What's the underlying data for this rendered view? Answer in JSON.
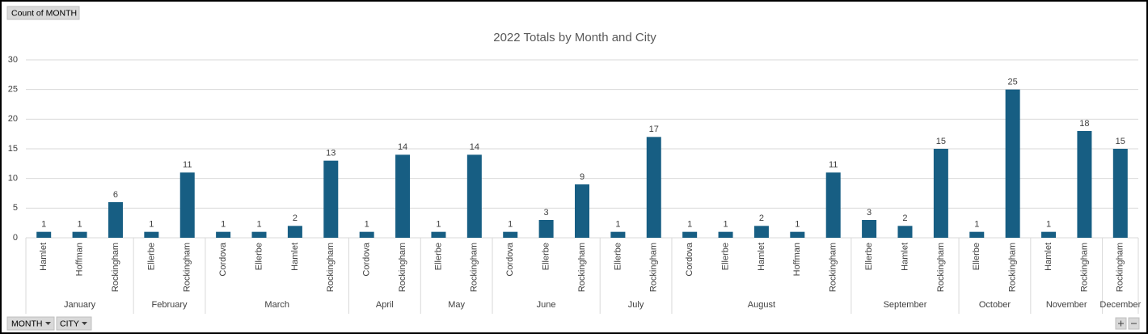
{
  "field_buttons": {
    "values": "Count of MONTH",
    "axis": [
      "MONTH",
      "CITY"
    ]
  },
  "chart_data": {
    "type": "bar",
    "title": "2022 Totals by Month and City",
    "color": "#175e83",
    "ylim": [
      0,
      30
    ],
    "yticks": [
      0,
      5,
      10,
      15,
      20,
      25,
      30
    ],
    "grid": true,
    "groups": [
      {
        "name": "January",
        "categories": [
          "Hamlet",
          "Hoffman",
          "Rockingham"
        ],
        "values": [
          1,
          1,
          6
        ]
      },
      {
        "name": "February",
        "categories": [
          "Ellerbe",
          "Rockingham"
        ],
        "values": [
          1,
          11
        ]
      },
      {
        "name": "March",
        "categories": [
          "Cordova",
          "Ellerbe",
          "Hamlet",
          "Rockingham"
        ],
        "values": [
          1,
          1,
          2,
          13
        ]
      },
      {
        "name": "April",
        "categories": [
          "Cordova",
          "Rockingham"
        ],
        "values": [
          1,
          14
        ]
      },
      {
        "name": "May",
        "categories": [
          "Ellerbe",
          "Rockingham"
        ],
        "values": [
          1,
          14
        ]
      },
      {
        "name": "June",
        "categories": [
          "Cordova",
          "Ellerbe",
          "Rockingham"
        ],
        "values": [
          1,
          3,
          9
        ]
      },
      {
        "name": "July",
        "categories": [
          "Ellerbe",
          "Rockingham"
        ],
        "values": [
          1,
          17
        ]
      },
      {
        "name": "August",
        "categories": [
          "Cordova",
          "Ellerbe",
          "Hamlet",
          "Hoffman",
          "Rockingham"
        ],
        "values": [
          1,
          1,
          2,
          1,
          11
        ]
      },
      {
        "name": "September",
        "categories": [
          "Ellerbe",
          "Hamlet",
          "Rockingham"
        ],
        "values": [
          3,
          2,
          15
        ]
      },
      {
        "name": "October",
        "categories": [
          "Ellerbe",
          "Rockingham"
        ],
        "values": [
          1,
          25
        ]
      },
      {
        "name": "November",
        "categories": [
          "Hamlet",
          "Rockingham"
        ],
        "values": [
          1,
          18
        ]
      },
      {
        "name": "December",
        "categories": [
          "Rockingham"
        ],
        "values": [
          15
        ]
      }
    ]
  }
}
